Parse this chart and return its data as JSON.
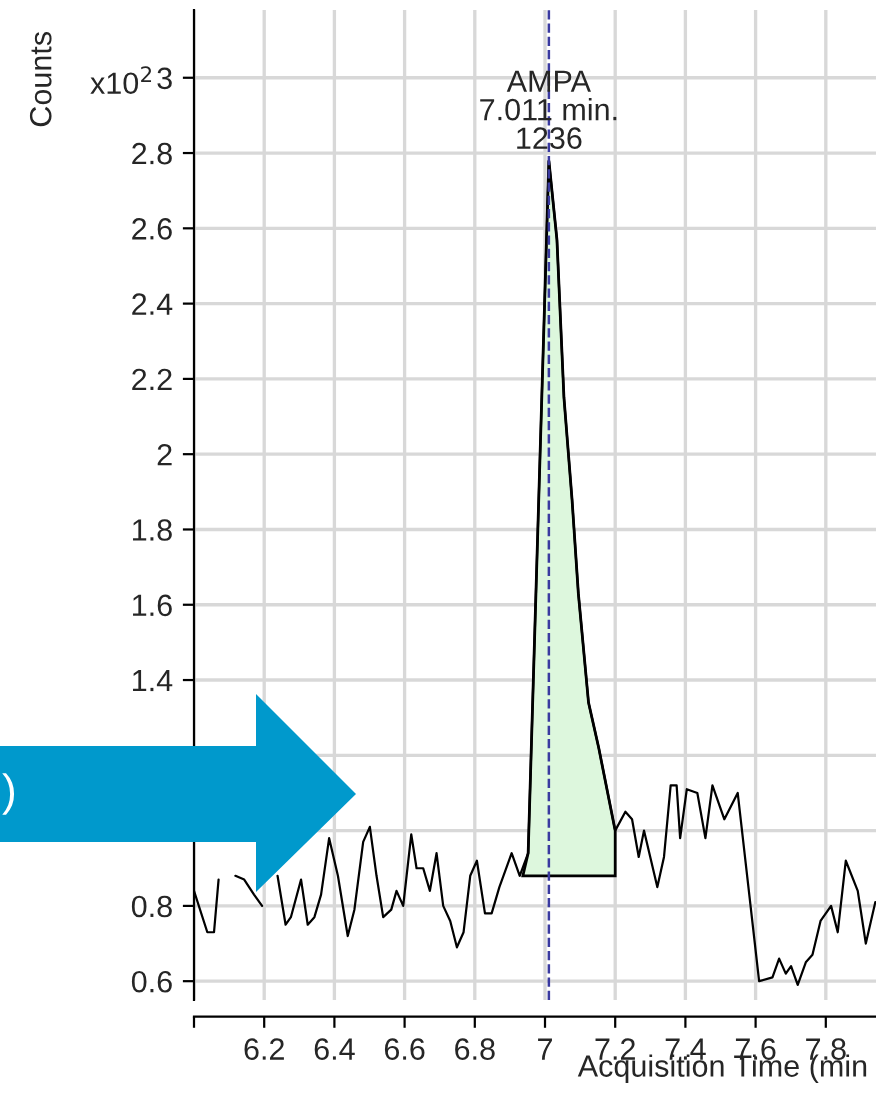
{
  "chart_data": {
    "type": "line",
    "xlabel": "Acquisition Time (min",
    "ylabel": "Counts",
    "xlim": [
      6.0,
      7.943
    ],
    "ylim": [
      0.55,
      3.18
    ],
    "xticks": [
      {
        "value": 6.0,
        "label": null
      },
      6.2,
      6.4,
      6.6,
      6.8,
      7,
      7.2,
      7.4,
      7.6,
      7.8
    ],
    "yticks": [
      0.6,
      0.8,
      {
        "value": 1,
        "label": null
      },
      {
        "value": 1.2,
        "label": null
      },
      1.4,
      1.6,
      1.8,
      2,
      2.2,
      2.4,
      2.6,
      2.8,
      3
    ],
    "grid": true,
    "legend": false,
    "marker": "none",
    "line_style": "solid",
    "series": [
      {
        "type": "line",
        "color": "#000000",
        "x": [
          6.0,
          6.038,
          6.057,
          6.07,
          6.095,
          6.118,
          6.143,
          6.171,
          6.194,
          6.219,
          6.238,
          6.261,
          6.276,
          6.305,
          6.324,
          6.343,
          6.362,
          6.385,
          6.41,
          6.438,
          6.457,
          6.482,
          6.501,
          6.52,
          6.539,
          6.562,
          6.577,
          6.596,
          6.619,
          6.634,
          6.653,
          6.672,
          6.691,
          6.71,
          6.73,
          6.749,
          6.768,
          6.787,
          6.806,
          6.829,
          6.848,
          6.87,
          6.905,
          6.928,
          6.952,
          7.011,
          7.034,
          7.054,
          7.077,
          7.095,
          7.124,
          7.153,
          7.2,
          7.229,
          7.248,
          7.267,
          7.282,
          7.32,
          7.339,
          7.358,
          7.375,
          7.385,
          7.404,
          7.434,
          7.457,
          7.477,
          7.511,
          7.549,
          7.61,
          7.648,
          7.667,
          7.686,
          7.701,
          7.72,
          7.743,
          7.762,
          7.785,
          7.815,
          7.834,
          7.857,
          7.891,
          7.914,
          7.941
        ],
        "values": [
          0.84,
          0.73,
          0.73,
          0.87,
          null,
          0.88,
          0.87,
          0.83,
          0.8,
          null,
          0.88,
          0.75,
          0.77,
          0.87,
          0.75,
          0.77,
          0.83,
          0.98,
          0.88,
          0.72,
          0.79,
          0.97,
          1.01,
          0.88,
          0.77,
          0.79,
          0.84,
          0.8,
          0.99,
          0.9,
          0.9,
          0.84,
          0.94,
          0.8,
          0.76,
          0.69,
          0.73,
          0.88,
          0.92,
          0.78,
          0.78,
          0.85,
          0.94,
          0.88,
          0.94,
          2.78,
          2.57,
          2.15,
          1.88,
          1.63,
          1.34,
          1.22,
          1.0,
          1.05,
          1.03,
          0.93,
          1.0,
          0.85,
          0.93,
          1.12,
          1.12,
          0.98,
          1.11,
          1.1,
          0.98,
          1.12,
          1.03,
          1.1,
          0.6,
          0.61,
          0.66,
          0.62,
          0.64,
          0.59,
          0.65,
          0.67,
          0.76,
          0.8,
          0.73,
          0.92,
          0.84,
          0.7,
          0.81
        ]
      },
      {
        "type": "area",
        "color": "#ddf7dd",
        "x": [
          6.937,
          6.952,
          7.011,
          7.034,
          7.054,
          7.077,
          7.095,
          7.124,
          7.153,
          7.2,
          7.2
        ],
        "values": [
          0.88,
          0.94,
          2.78,
          2.57,
          2.15,
          1.88,
          1.63,
          1.34,
          1.22,
          1.0,
          0.88
        ]
      }
    ],
    "ref_lines": [
      {
        "axis": "x",
        "value": 7.011,
        "color": "#3a3aa0",
        "line_style": "dashed"
      }
    ],
    "annotations": [
      {
        "text": "AMPA\n7.011 min.\n1236",
        "x": 7.011,
        "y": 2.78
      },
      "x10$^{2}$",
      ")"
    ]
  }
}
